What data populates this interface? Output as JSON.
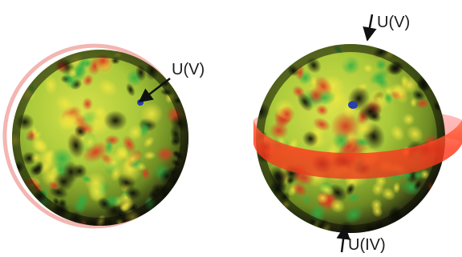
{
  "panels": [
    {
      "id": "left",
      "annotations": [
        {
          "text": "U(V)"
        }
      ]
    },
    {
      "id": "right",
      "annotations": [
        {
          "text": "U(V)"
        },
        {
          "text": "U(IV)"
        }
      ]
    }
  ],
  "colors": {
    "surface_green": "#3fae3a",
    "surface_yellow": "#d8d436",
    "surface_red": "#cc3a22",
    "shadow": "#1a1a10",
    "ring_red": "#ff3a2a",
    "ring_outline": "#f3b6b2",
    "site_blue": "#2a3fa8",
    "label": "#1a1a1a"
  }
}
